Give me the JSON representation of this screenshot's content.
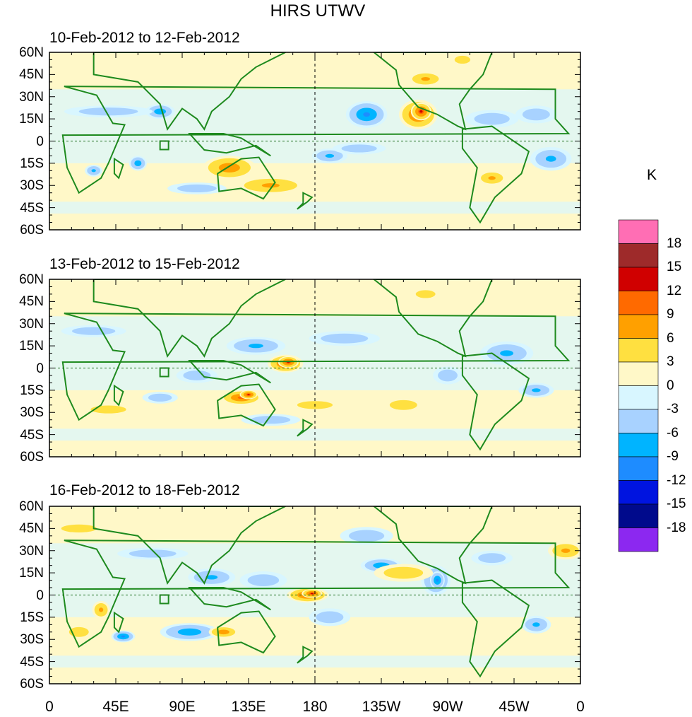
{
  "title": "HIRS UTWV",
  "panels": [
    {
      "title": "10-Feb-2012 to 12-Feb-2012"
    },
    {
      "title": "13-Feb-2012 to 15-Feb-2012"
    },
    {
      "title": "16-Feb-2012 to 18-Feb-2012"
    }
  ],
  "lat_ticks": [
    "60N",
    "45N",
    "30N",
    "15N",
    "0",
    "15S",
    "30S",
    "45S",
    "60S"
  ],
  "lon_ticks": [
    "0",
    "45E",
    "90E",
    "135E",
    "180",
    "135W",
    "90W",
    "45W",
    "0"
  ],
  "colorbar": {
    "unit": "K",
    "labels": [
      "18",
      "15",
      "12",
      "9",
      "6",
      "3",
      "0",
      "-3",
      "-6",
      "-9",
      "-12",
      "-15",
      "-18"
    ],
    "colors": [
      "#ff6eb4",
      "#9e2a2a",
      "#d00000",
      "#ff6a00",
      "#ffa000",
      "#ffe040",
      "#fff8c8",
      "#d8f6ff",
      "#a8d2ff",
      "#00b4ff",
      "#1e8cff",
      "#0014e0",
      "#000a8c",
      "#8c28f0"
    ]
  }
}
